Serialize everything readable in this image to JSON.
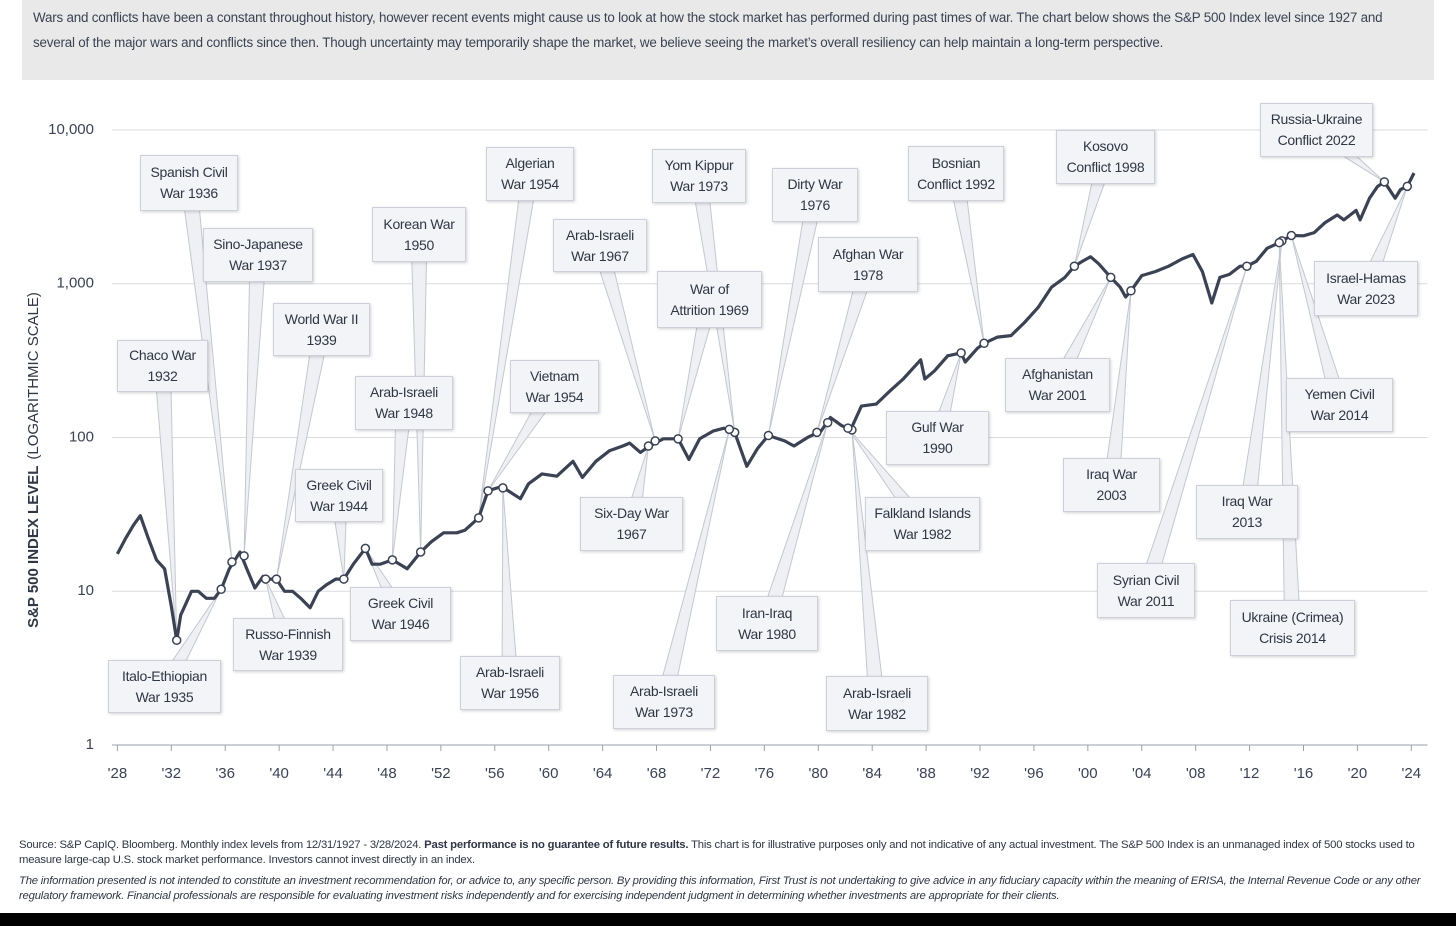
{
  "chart_data": {
    "type": "line",
    "intro": "Wars and conflicts have been a constant throughout history, however recent events might cause us to look at how the stock market has performed during past times of war. The chart below shows the S&P 500 Index level since 1927 and several of the major wars and conflicts since then. Though uncertainty may temporarily shape the market, we believe seeing the market’s overall resiliency can help maintain a long-term perspective.",
    "y_label": "S&P 500 INDEX LEVEL",
    "y_label_note": "(LOGARITHMIC SCALE)",
    "log_y": true,
    "grid": true,
    "color": "#3a4253",
    "xlim": [
      1927.6,
      2025.2
    ],
    "ylim": [
      1,
      10000
    ],
    "yticks": [
      1,
      10,
      100,
      {
        "value": 1000,
        "label": "1,000"
      },
      {
        "value": 10000,
        "label": "10,000"
      }
    ],
    "xticks": [
      {
        "value": 1928,
        "label": "'28"
      },
      {
        "value": 1932,
        "label": "'32"
      },
      {
        "value": 1936,
        "label": "'36"
      },
      {
        "value": 1940,
        "label": "'40"
      },
      {
        "value": 1944,
        "label": "'44"
      },
      {
        "value": 1948,
        "label": "'48"
      },
      {
        "value": 1952,
        "label": "'52"
      },
      {
        "value": 1956,
        "label": "'56"
      },
      {
        "value": 1960,
        "label": "'60"
      },
      {
        "value": 1964,
        "label": "'64"
      },
      {
        "value": 1968,
        "label": "'68"
      },
      {
        "value": 1972,
        "label": "'72"
      },
      {
        "value": 1976,
        "label": "'76"
      },
      {
        "value": 1980,
        "label": "'80"
      },
      {
        "value": 1984,
        "label": "'84"
      },
      {
        "value": 1988,
        "label": "'88"
      },
      {
        "value": 1992,
        "label": "'92"
      },
      {
        "value": 1996,
        "label": "'96"
      },
      {
        "value": 2000,
        "label": "'00"
      },
      {
        "value": 2004,
        "label": "'04"
      },
      {
        "value": 2008,
        "label": "'08"
      },
      {
        "value": 2012,
        "label": "'12"
      },
      {
        "value": 2016,
        "label": "'16"
      },
      {
        "value": 2020,
        "label": "'20"
      },
      {
        "value": 2024,
        "label": "'24"
      }
    ],
    "x": [
      1928,
      1928.6,
      1929.2,
      1929.7,
      1930.3,
      1930.9,
      1931.5,
      1932.0,
      1932.4,
      1932.7,
      1933.0,
      1933.5,
      1934.0,
      1934.6,
      1935.2,
      1935.7,
      1936.3,
      1937.1,
      1937.6,
      1938.2,
      1938.8,
      1939.3,
      1939.8,
      1940.4,
      1941.0,
      1941.6,
      1942.3,
      1942.9,
      1943.5,
      1944.2,
      1944.8,
      1945.5,
      1946.4,
      1946.9,
      1947.5,
      1948.4,
      1949.5,
      1950.5,
      1951.3,
      1952.2,
      1953.2,
      1953.8,
      1954.8,
      1955.5,
      1956.5,
      1957.9,
      1958.5,
      1959.5,
      1960.6,
      1961.8,
      1962.5,
      1963.5,
      1964.5,
      1965.5,
      1966.0,
      1966.8,
      1967.5,
      1968.5,
      1969.6,
      1970.4,
      1971.2,
      1972.2,
      1973.0,
      1973.8,
      1974.7,
      1975.5,
      1976.3,
      1977.5,
      1978.2,
      1979.2,
      1980.2,
      1980.9,
      1981.7,
      1982.4,
      1983.2,
      1984.3,
      1985.3,
      1986.3,
      1987.6,
      1987.9,
      1988.6,
      1989.6,
      1990.6,
      1990.9,
      1991.8,
      1992.3,
      1993.3,
      1994.3,
      1995.3,
      1996.3,
      1997.3,
      1998.3,
      1999.0,
      1999.6,
      2000.2,
      2000.8,
      2001.7,
      2002.4,
      2002.8,
      2003.2,
      2004.0,
      2005.0,
      2006.0,
      2007.0,
      2007.8,
      2008.5,
      2009.2,
      2009.8,
      2010.5,
      2011.3,
      2011.8,
      2012.5,
      2013.3,
      2014.2,
      2014.4,
      2015.1,
      2016.0,
      2016.8,
      2017.6,
      2018.5,
      2019.0,
      2019.9,
      2020.2,
      2020.9,
      2021.5,
      2022.0,
      2022.8,
      2023.2,
      2023.7,
      2024.2
    ],
    "values": [
      17.5,
      22,
      27,
      31,
      22,
      16,
      14,
      8,
      4.8,
      7,
      8,
      10,
      10,
      9,
      9,
      10.3,
      14,
      18,
      14,
      10.5,
      12.5,
      12,
      12,
      10,
      10,
      9,
      7.8,
      10,
      11,
      12,
      12,
      15,
      19,
      15,
      15,
      16,
      14,
      18,
      21,
      24,
      24,
      25,
      30,
      45,
      48,
      40,
      50,
      58,
      56,
      70,
      55,
      70,
      82,
      88,
      92,
      80,
      88,
      98,
      98,
      72,
      98,
      110,
      115,
      108,
      65,
      85,
      103,
      95,
      88,
      100,
      110,
      135,
      120,
      112,
      160,
      165,
      200,
      240,
      320,
      240,
      270,
      340,
      355,
      310,
      380,
      410,
      450,
      460,
      560,
      700,
      950,
      1100,
      1300,
      1400,
      1500,
      1350,
      1100,
      950,
      820,
      900,
      1130,
      1200,
      1300,
      1450,
      1550,
      1200,
      750,
      1100,
      1150,
      1300,
      1300,
      1400,
      1700,
      1850,
      1900,
      2060,
      2050,
      2150,
      2500,
      2800,
      2600,
      3000,
      2600,
      3600,
      4300,
      4600,
      3600,
      4100,
      4300,
      5250
    ],
    "annotations": [
      {
        "label": "Spanish Civil\nWar 1936",
        "year": 1936.5,
        "value": 15.5
      },
      {
        "label": "Sino-Japanese\nWar 1937",
        "year": 1937.4,
        "value": 17
      },
      {
        "label": "Chaco War\n1932",
        "year": 1932.4,
        "value": 4.8
      },
      {
        "label": "World War II\n1939",
        "year": 1939.8,
        "value": 12
      },
      {
        "label": "Korean War\n1950",
        "year": 1950.5,
        "value": 18
      },
      {
        "label": "Arab-Israeli\nWar 1948",
        "year": 1948.4,
        "value": 16
      },
      {
        "label": "Greek Civil\nWar 1944",
        "year": 1944.8,
        "value": 12
      },
      {
        "label": "Greek Civil\nWar 1946",
        "year": 1946.4,
        "value": 19
      },
      {
        "label": "Russo-Finnish\nWar 1939",
        "year": 1939.0,
        "value": 12
      },
      {
        "label": "Italo-Ethiopian\nWar 1935",
        "year": 1935.7,
        "value": 10.3
      },
      {
        "label": "Algerian\nWar 1954",
        "year": 1954.8,
        "value": 30
      },
      {
        "label": "Vietnam\nWar 1954",
        "year": 1955.5,
        "value": 45
      },
      {
        "label": "Arab-Israeli\nWar 1956",
        "year": 1956.6,
        "value": 47
      },
      {
        "label": "Arab-Israeli\nWar 1967",
        "year": 1967.9,
        "value": 95
      },
      {
        "label": "Six-Day War\n1967",
        "year": 1967.4,
        "value": 88
      },
      {
        "label": "Yom Kippur\nWar 1973",
        "year": 1973.8,
        "value": 108
      },
      {
        "label": "War of\nAttrition 1969",
        "year": 1969.6,
        "value": 98
      },
      {
        "label": "Arab-Israeli\nWar 1973",
        "year": 1973.4,
        "value": 113
      },
      {
        "label": "Dirty War\n1976",
        "year": 1976.3,
        "value": 103
      },
      {
        "label": "Afghan War\n1978",
        "year": 1979.9,
        "value": 108
      },
      {
        "label": "Iran-Iraq\nWar 1980",
        "year": 1980.7,
        "value": 125
      },
      {
        "label": "Arab-Israeli\nWar 1982",
        "year": 1982.5,
        "value": 112
      },
      {
        "label": "Falkland Islands\nWar 1982",
        "year": 1982.2,
        "value": 115
      },
      {
        "label": "Bosnian\nConflict 1992",
        "year": 1992.3,
        "value": 410
      },
      {
        "label": "Gulf War\n1990",
        "year": 1990.6,
        "value": 355
      },
      {
        "label": "Kosovo\nConflict 1998",
        "year": 1999.0,
        "value": 1300
      },
      {
        "label": "Afghanistan\nWar 2001",
        "year": 2001.7,
        "value": 1100
      },
      {
        "label": "Iraq War\n2003",
        "year": 2003.2,
        "value": 900
      },
      {
        "label": "Syrian Civil\nWar 2011",
        "year": 2011.8,
        "value": 1300
      },
      {
        "label": "Iraq War\n2013",
        "year": 2014.4,
        "value": 1900
      },
      {
        "label": "Ukraine (Crimea)\nCrisis 2014",
        "year": 2014.2,
        "value": 1850
      },
      {
        "label": "Yemen Civil\nWar 2014",
        "year": 2015.1,
        "value": 2060
      },
      {
        "label": "Russia-Ukraine\nConflict 2022",
        "year": 2022.0,
        "value": 4600
      },
      {
        "label": "Israel-Hamas\nWar 2023",
        "year": 2023.7,
        "value": 4300
      }
    ],
    "source": "Source: S&P CapIQ. Bloomberg. Monthly index levels from 12/31/1927 - 3/28/2024.",
    "source_bold": "Past performance is no guarantee of future results.",
    "source_rest": "This chart is for illustrative purposes only and not indicative of any actual investment. The S&P 500 Index is an unmanaged index of 500 stocks used to measure large-cap U.S. stock market performance. Investors cannot invest directly in an index.",
    "disclaimer": "The information presented is not intended to constitute an investment recommendation for, or advice to, any specific person. By providing this information, First Trust is not undertaking to give advice in any fiduciary capacity within the meaning of ERISA, the Internal Revenue Code or any other regulatory framework. Financial professionals are responsible for evaluating investment risks independently and for exercising independent judgment in determining whether investments are appropriate for their clients."
  }
}
